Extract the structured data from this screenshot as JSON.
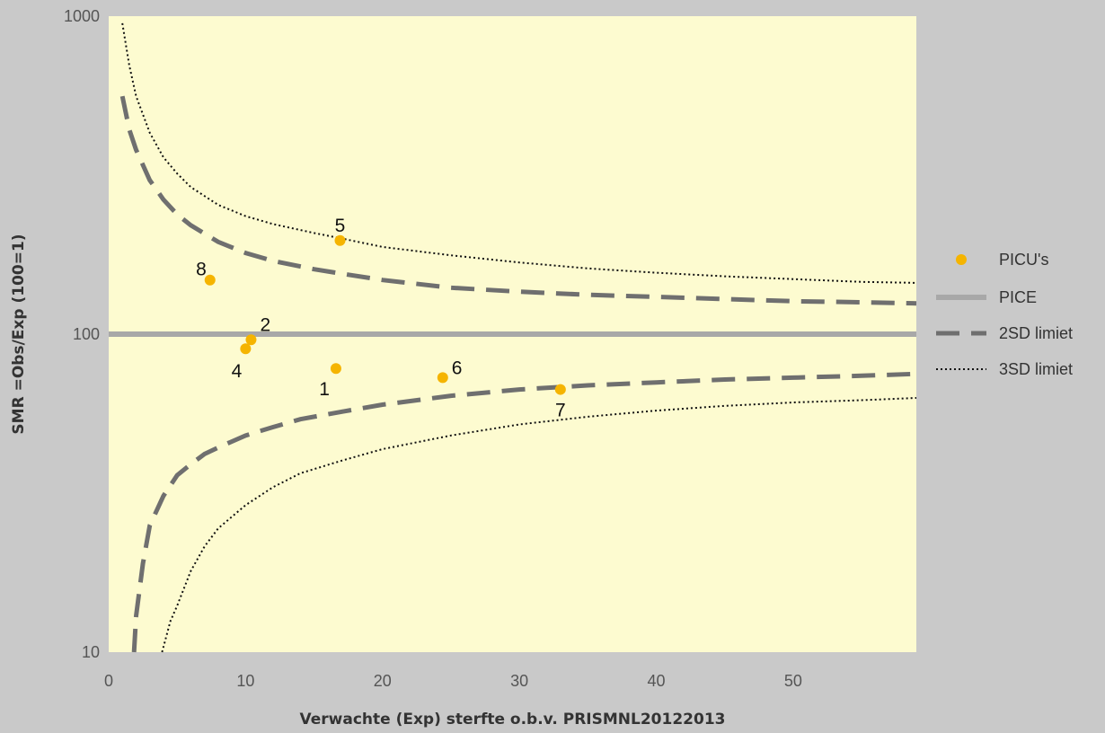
{
  "chart_data": {
    "type": "scatter",
    "title": "",
    "xlabel": "Verwachte (Exp) sterfte o.b.v. PRISMNL20122013",
    "ylabel": "SMR =Obs/Exp (100=1)",
    "xlim": [
      0,
      59
    ],
    "ylim": [
      10,
      1000
    ],
    "y_scale": "log",
    "x_ticks": [
      0,
      10,
      20,
      30,
      40,
      50
    ],
    "y_ticks": [
      10,
      100,
      1000
    ],
    "grid": false,
    "legend_position": "right",
    "colors": {
      "plot_background": "#fdfbd0",
      "page_background": "#c9c9c9",
      "points": "#f5b400",
      "pice_line": "#a8a8a8",
      "limit_2sd": "#6f6f6f",
      "limit_3sd": "#111111"
    },
    "series": [
      {
        "name": "PICU's",
        "kind": "points",
        "points": [
          {
            "label": "1",
            "x": 16.6,
            "y": 78
          },
          {
            "label": "2",
            "x": 10.4,
            "y": 96
          },
          {
            "label": "4",
            "x": 10.0,
            "y": 90
          },
          {
            "label": "5",
            "x": 16.9,
            "y": 197
          },
          {
            "label": "6",
            "x": 24.4,
            "y": 73
          },
          {
            "label": "7",
            "x": 33.0,
            "y": 67
          },
          {
            "label": "8",
            "x": 7.4,
            "y": 148
          }
        ]
      },
      {
        "name": "PICE",
        "kind": "line",
        "x": [
          0,
          59
        ],
        "y": [
          100,
          100
        ]
      },
      {
        "name": "2SD limiet",
        "kind": "dashed",
        "upper": {
          "x": [
            1,
            1.5,
            2,
            3,
            4,
            5,
            6,
            8,
            10,
            12,
            15,
            17,
            20,
            25,
            30,
            35,
            40,
            45,
            50,
            55,
            59
          ],
          "y": [
            560,
            440,
            380,
            305,
            265,
            238,
            220,
            195,
            180,
            170,
            160,
            155,
            148,
            140,
            136,
            133,
            131,
            129,
            127,
            126,
            125
          ]
        },
        "lower": {
          "x": [
            1.85,
            2,
            2.5,
            3,
            4,
            5,
            6,
            7,
            8,
            10,
            12,
            14,
            17,
            20,
            25,
            30,
            35,
            40,
            45,
            50,
            55,
            59
          ],
          "y": [
            10,
            13,
            19,
            25,
            31,
            36,
            39,
            42,
            44,
            48,
            51,
            54,
            57,
            60,
            64,
            67,
            69,
            70.5,
            72,
            73,
            74,
            75
          ]
        }
      },
      {
        "name": "3SD limiet",
        "kind": "dotted",
        "upper": {
          "x": [
            1,
            1.5,
            2,
            3,
            4,
            5,
            6,
            8,
            10,
            12,
            15,
            17,
            20,
            25,
            30,
            35,
            40,
            45,
            50,
            55,
            59
          ],
          "y": [
            950,
            700,
            560,
            430,
            360,
            320,
            290,
            255,
            235,
            222,
            208,
            200,
            188,
            177,
            168,
            161,
            156,
            152,
            149,
            146,
            145
          ]
        },
        "lower": {
          "x": [
            3.9,
            4.5,
            5,
            6,
            7,
            8,
            10,
            12,
            14,
            17,
            20,
            25,
            30,
            35,
            40,
            45,
            50,
            55,
            59
          ],
          "y": [
            10,
            12.5,
            14,
            18,
            21.5,
            24.5,
            29,
            33,
            36.5,
            40,
            43.5,
            48,
            52,
            55,
            57.5,
            59.5,
            61,
            62,
            63
          ]
        }
      }
    ]
  }
}
